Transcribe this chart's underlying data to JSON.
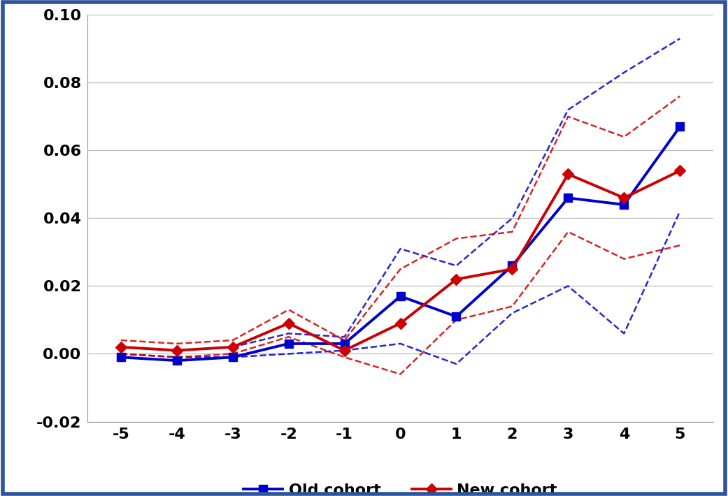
{
  "x": [
    -5,
    -4,
    -3,
    -2,
    -1,
    0,
    1,
    2,
    3,
    4,
    5
  ],
  "old_cohort": [
    -0.001,
    -0.002,
    -0.001,
    0.003,
    0.003,
    0.017,
    0.011,
    0.026,
    0.046,
    0.044,
    0.067
  ],
  "old_upper": [
    0.002,
    0.001,
    0.002,
    0.006,
    0.005,
    0.031,
    0.026,
    0.04,
    0.072,
    0.083,
    0.093
  ],
  "old_lower": [
    0.0,
    -0.001,
    -0.001,
    0.0,
    0.001,
    0.003,
    -0.003,
    0.012,
    0.02,
    0.006,
    0.042
  ],
  "new_cohort": [
    0.002,
    0.001,
    0.002,
    0.009,
    0.001,
    0.009,
    0.022,
    0.025,
    0.053,
    0.046,
    0.054
  ],
  "new_upper": [
    0.004,
    0.003,
    0.004,
    0.013,
    0.004,
    0.025,
    0.034,
    0.036,
    0.07,
    0.064,
    0.076
  ],
  "new_lower": [
    0.0,
    -0.001,
    0.0,
    0.005,
    -0.001,
    -0.006,
    0.01,
    0.014,
    0.036,
    0.028,
    0.032
  ],
  "ylim": [
    -0.02,
    0.1
  ],
  "yticks": [
    -0.02,
    0.0,
    0.02,
    0.04,
    0.06,
    0.08,
    0.1
  ],
  "ytick_labels": [
    "-0.02",
    "0.00",
    "0.02",
    "0.04",
    "0.06",
    "0.08",
    "0.10"
  ],
  "blue_color": "#0000CD",
  "red_color": "#CC0000",
  "background_color": "#FFFFFF",
  "grid_color": "#BBBBBB",
  "border_color": "#2F5597",
  "legend_old": "Old cohort",
  "legend_new": "New cohort",
  "tick_fontsize": 16,
  "legend_fontsize": 16
}
